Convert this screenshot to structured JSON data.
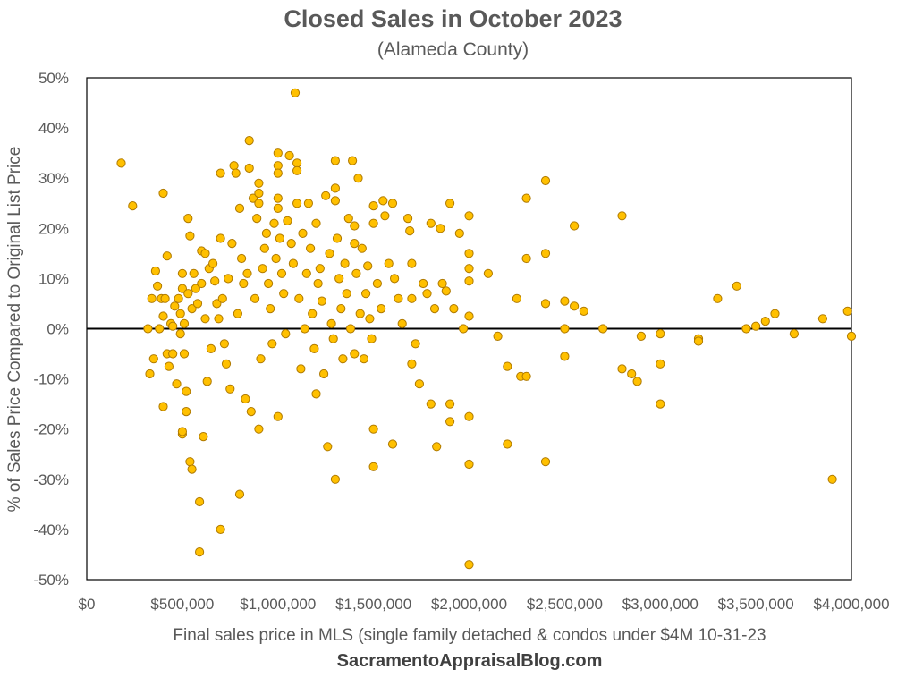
{
  "chart_data": {
    "type": "scatter",
    "title": "Closed Sales in October 2023",
    "subtitle": "(Alameda County)",
    "xlabel": "Final sales price in MLS (single family detached & condos under $4M  10-31-23",
    "ylabel": "% of Sales Price Compared to Original List Price",
    "credit": "SacramentoAppraisalBlog.com",
    "xlim": [
      0,
      4000000
    ],
    "ylim": [
      -50,
      50
    ],
    "x_ticks": [
      "$0",
      "$500,000",
      "$1,000,000",
      "$1,500,000",
      "$2,000,000",
      "$2,500,000",
      "$3,000,000",
      "$3,500,000",
      "$4,000,000"
    ],
    "y_ticks": [
      "-50%",
      "-40%",
      "-30%",
      "-20%",
      "-10%",
      "0%",
      "10%",
      "20%",
      "30%",
      "40%",
      "50%"
    ],
    "grid": false,
    "zero_line": true,
    "marker_color": "#FFC000",
    "marker_edge_color": "#B07A00",
    "points": [
      [
        180000,
        33
      ],
      [
        240000,
        24.5
      ],
      [
        320000,
        0
      ],
      [
        330000,
        -9
      ],
      [
        340000,
        6
      ],
      [
        350000,
        -6
      ],
      [
        360000,
        11.5
      ],
      [
        370000,
        8.5
      ],
      [
        380000,
        0
      ],
      [
        390000,
        6
      ],
      [
        400000,
        27
      ],
      [
        400000,
        2.5
      ],
      [
        400000,
        -15.5
      ],
      [
        410000,
        6
      ],
      [
        420000,
        14.5
      ],
      [
        420000,
        -5
      ],
      [
        430000,
        -7.5
      ],
      [
        440000,
        1
      ],
      [
        450000,
        -5
      ],
      [
        450000,
        0.5
      ],
      [
        460000,
        4.5
      ],
      [
        470000,
        -11
      ],
      [
        480000,
        6
      ],
      [
        490000,
        -1
      ],
      [
        490000,
        3
      ],
      [
        500000,
        -21
      ],
      [
        500000,
        -20.5
      ],
      [
        500000,
        11
      ],
      [
        500000,
        8
      ],
      [
        510000,
        1
      ],
      [
        510000,
        -5
      ],
      [
        520000,
        -16.5
      ],
      [
        520000,
        -12.5
      ],
      [
        530000,
        22
      ],
      [
        530000,
        7
      ],
      [
        540000,
        -26.5
      ],
      [
        540000,
        18.5
      ],
      [
        550000,
        -28
      ],
      [
        550000,
        4
      ],
      [
        560000,
        11
      ],
      [
        570000,
        8
      ],
      [
        580000,
        5
      ],
      [
        590000,
        -34.5
      ],
      [
        590000,
        -44.5
      ],
      [
        600000,
        15.5
      ],
      [
        600000,
        9
      ],
      [
        610000,
        -21.5
      ],
      [
        620000,
        15
      ],
      [
        620000,
        2
      ],
      [
        630000,
        -10.5
      ],
      [
        640000,
        12
      ],
      [
        650000,
        -4
      ],
      [
        660000,
        13
      ],
      [
        670000,
        9.5
      ],
      [
        680000,
        5
      ],
      [
        690000,
        2
      ],
      [
        700000,
        31
      ],
      [
        700000,
        18
      ],
      [
        700000,
        -40
      ],
      [
        710000,
        6
      ],
      [
        720000,
        -3
      ],
      [
        730000,
        -7
      ],
      [
        740000,
        10
      ],
      [
        750000,
        -12
      ],
      [
        760000,
        17
      ],
      [
        770000,
        32.5
      ],
      [
        780000,
        31
      ],
      [
        790000,
        3
      ],
      [
        800000,
        -33
      ],
      [
        800000,
        24
      ],
      [
        810000,
        14
      ],
      [
        820000,
        9
      ],
      [
        830000,
        -14
      ],
      [
        840000,
        11
      ],
      [
        850000,
        37.5
      ],
      [
        850000,
        32
      ],
      [
        860000,
        -16.5
      ],
      [
        870000,
        26
      ],
      [
        880000,
        6
      ],
      [
        890000,
        22
      ],
      [
        900000,
        29
      ],
      [
        900000,
        27
      ],
      [
        900000,
        25
      ],
      [
        900000,
        -20
      ],
      [
        910000,
        -6
      ],
      [
        920000,
        12
      ],
      [
        930000,
        16
      ],
      [
        940000,
        19
      ],
      [
        950000,
        9
      ],
      [
        960000,
        4
      ],
      [
        970000,
        -3
      ],
      [
        980000,
        21
      ],
      [
        990000,
        14
      ],
      [
        1000000,
        35
      ],
      [
        1000000,
        32.5
      ],
      [
        1000000,
        31
      ],
      [
        1000000,
        26
      ],
      [
        1000000,
        24
      ],
      [
        1000000,
        -17.5
      ],
      [
        1010000,
        18
      ],
      [
        1020000,
        11
      ],
      [
        1030000,
        7
      ],
      [
        1040000,
        -1
      ],
      [
        1050000,
        21.5
      ],
      [
        1060000,
        34.5
      ],
      [
        1070000,
        17
      ],
      [
        1080000,
        13
      ],
      [
        1090000,
        47
      ],
      [
        1100000,
        33
      ],
      [
        1100000,
        31.5
      ],
      [
        1100000,
        25
      ],
      [
        1110000,
        6
      ],
      [
        1120000,
        -8
      ],
      [
        1130000,
        19
      ],
      [
        1140000,
        0
      ],
      [
        1150000,
        11
      ],
      [
        1160000,
        25
      ],
      [
        1170000,
        16
      ],
      [
        1180000,
        3
      ],
      [
        1190000,
        -4
      ],
      [
        1200000,
        21
      ],
      [
        1200000,
        -13
      ],
      [
        1210000,
        9
      ],
      [
        1220000,
        12
      ],
      [
        1230000,
        5.5
      ],
      [
        1240000,
        -9
      ],
      [
        1250000,
        26.5
      ],
      [
        1260000,
        -23.5
      ],
      [
        1270000,
        15
      ],
      [
        1280000,
        1
      ],
      [
        1290000,
        -2
      ],
      [
        1300000,
        33.5
      ],
      [
        1300000,
        28
      ],
      [
        1300000,
        25.5
      ],
      [
        1300000,
        -30
      ],
      [
        1310000,
        18
      ],
      [
        1320000,
        10
      ],
      [
        1330000,
        4
      ],
      [
        1340000,
        -6
      ],
      [
        1350000,
        13
      ],
      [
        1360000,
        7
      ],
      [
        1370000,
        22
      ],
      [
        1380000,
        0
      ],
      [
        1390000,
        33.5
      ],
      [
        1400000,
        17
      ],
      [
        1400000,
        20.5
      ],
      [
        1400000,
        -5
      ],
      [
        1410000,
        11
      ],
      [
        1420000,
        30
      ],
      [
        1430000,
        3
      ],
      [
        1440000,
        16
      ],
      [
        1450000,
        -6
      ],
      [
        1460000,
        7
      ],
      [
        1470000,
        12.5
      ],
      [
        1480000,
        2
      ],
      [
        1490000,
        -2
      ],
      [
        1500000,
        24.5
      ],
      [
        1500000,
        21
      ],
      [
        1500000,
        -20
      ],
      [
        1500000,
        -27.5
      ],
      [
        1520000,
        9
      ],
      [
        1540000,
        4
      ],
      [
        1550000,
        25.5
      ],
      [
        1560000,
        22.5
      ],
      [
        1580000,
        13
      ],
      [
        1600000,
        25
      ],
      [
        1600000,
        -23
      ],
      [
        1610000,
        10
      ],
      [
        1630000,
        6
      ],
      [
        1650000,
        1
      ],
      [
        1680000,
        22
      ],
      [
        1690000,
        19.5
      ],
      [
        1700000,
        13
      ],
      [
        1700000,
        6
      ],
      [
        1700000,
        -7
      ],
      [
        1720000,
        -3
      ],
      [
        1740000,
        -11
      ],
      [
        1760000,
        9
      ],
      [
        1780000,
        7
      ],
      [
        1800000,
        21
      ],
      [
        1800000,
        -15
      ],
      [
        1820000,
        4
      ],
      [
        1830000,
        -23.5
      ],
      [
        1850000,
        20
      ],
      [
        1860000,
        9
      ],
      [
        1880000,
        7.5
      ],
      [
        1900000,
        25
      ],
      [
        1900000,
        -15
      ],
      [
        1900000,
        -18.5
      ],
      [
        1920000,
        4
      ],
      [
        1950000,
        19
      ],
      [
        1970000,
        0
      ],
      [
        2000000,
        22.5
      ],
      [
        2000000,
        15
      ],
      [
        2000000,
        12
      ],
      [
        2000000,
        9.5
      ],
      [
        2000000,
        -17.5
      ],
      [
        2000000,
        -27
      ],
      [
        2000000,
        -47
      ],
      [
        2000000,
        2.5
      ],
      [
        2100000,
        11
      ],
      [
        2150000,
        -1.5
      ],
      [
        2200000,
        -7.5
      ],
      [
        2200000,
        -23
      ],
      [
        2250000,
        6
      ],
      [
        2270000,
        -9.5
      ],
      [
        2300000,
        26
      ],
      [
        2300000,
        14
      ],
      [
        2300000,
        -9.5
      ],
      [
        2400000,
        29.5
      ],
      [
        2400000,
        15
      ],
      [
        2400000,
        5
      ],
      [
        2400000,
        -26.5
      ],
      [
        2500000,
        5.5
      ],
      [
        2500000,
        0
      ],
      [
        2500000,
        -5.5
      ],
      [
        2550000,
        20.5
      ],
      [
        2550000,
        4.5
      ],
      [
        2600000,
        3.5
      ],
      [
        2700000,
        0
      ],
      [
        2800000,
        22.5
      ],
      [
        2800000,
        -8
      ],
      [
        2850000,
        -9
      ],
      [
        2880000,
        -10.5
      ],
      [
        2900000,
        -1.5
      ],
      [
        3000000,
        -1
      ],
      [
        3000000,
        -7
      ],
      [
        3000000,
        -15
      ],
      [
        3200000,
        -2
      ],
      [
        3200000,
        -2.5
      ],
      [
        3300000,
        6
      ],
      [
        3400000,
        8.5
      ],
      [
        3450000,
        0
      ],
      [
        3500000,
        0.5
      ],
      [
        3550000,
        1.5
      ],
      [
        3600000,
        3
      ],
      [
        3700000,
        -1
      ],
      [
        3850000,
        2
      ],
      [
        3900000,
        -30
      ],
      [
        3980000,
        3.5
      ],
      [
        4000000,
        -1.5
      ]
    ]
  }
}
